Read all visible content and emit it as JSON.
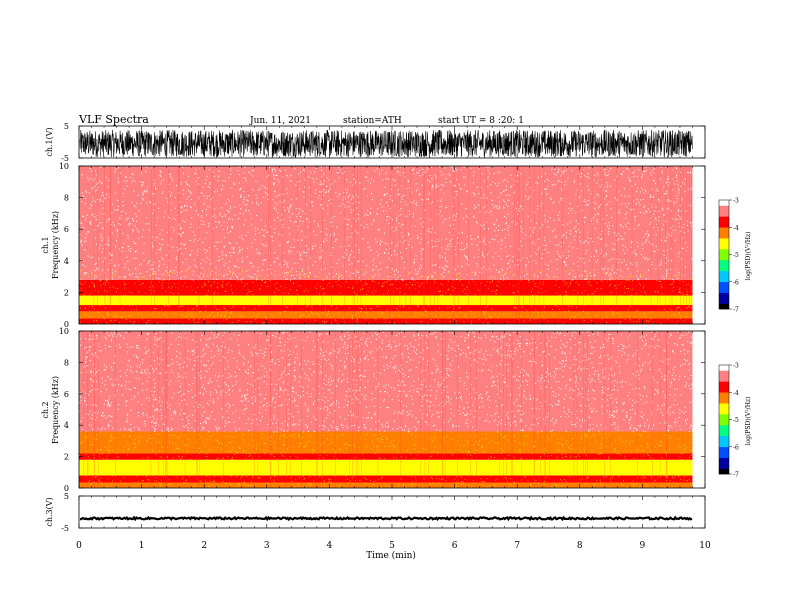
{
  "header": {
    "title": "VLF Spectra",
    "date": "Jun. 11, 2021",
    "station": "station=ATH",
    "start": "start UT = 8 :20: 1"
  },
  "colors": {
    "palette": [
      "#000000",
      "#0000a0",
      "#0050ff",
      "#00c8ff",
      "#00ff80",
      "#80ff00",
      "#ffff00",
      "#ff8000",
      "#ff0000",
      "#ff8080",
      "#ffffff"
    ],
    "waveform": "#000000",
    "axis": "#000000"
  },
  "chart_data": [
    {
      "type": "line",
      "name": "ch1-waveform",
      "ylabel": "ch.1(V)",
      "ylim": [
        -5,
        5
      ],
      "yticks": [
        "5",
        "-5"
      ],
      "description_amplitude": [
        -5,
        5
      ]
    },
    {
      "type": "heatmap",
      "name": "ch1-spectrogram",
      "ylabel_line1": "ch.1",
      "ylabel_line2": "Frequency (kHz)",
      "ylim": [
        0,
        10
      ],
      "yticks": [
        "0",
        "2",
        "4",
        "6",
        "8",
        "10"
      ],
      "bands": [
        {
          "f0": 0.0,
          "f1": 0.35,
          "level": -3.8
        },
        {
          "f0": 0.35,
          "f1": 0.8,
          "level": -4.2
        },
        {
          "f0": 0.8,
          "f1": 1.2,
          "level": -3.9
        },
        {
          "f0": 1.2,
          "f1": 1.8,
          "level": -4.4
        },
        {
          "f0": 1.8,
          "f1": 2.8,
          "level": -3.9
        },
        {
          "f0": 2.8,
          "f1": 10.0,
          "level": -3.3
        }
      ],
      "colorbar": {
        "label": "log(PSD)(V²/Hz)",
        "range": [
          -7,
          -3
        ],
        "ticks": [
          "-3",
          "-4",
          "-5",
          "-6",
          "-7"
        ]
      }
    },
    {
      "type": "heatmap",
      "name": "ch2-spectrogram",
      "ylabel_line1": "ch.2",
      "ylabel_line2": "Frequency (kHz)",
      "ylim": [
        0,
        10
      ],
      "yticks": [
        "0",
        "2",
        "4",
        "6",
        "8",
        "10"
      ],
      "bands": [
        {
          "f0": 0.0,
          "f1": 0.35,
          "level": -4.1
        },
        {
          "f0": 0.35,
          "f1": 0.8,
          "level": -3.9
        },
        {
          "f0": 0.8,
          "f1": 1.8,
          "level": -4.6
        },
        {
          "f0": 1.8,
          "f1": 2.2,
          "level": -3.9
        },
        {
          "f0": 2.2,
          "f1": 3.6,
          "level": -4.1
        },
        {
          "f0": 3.6,
          "f1": 10.0,
          "level": -3.4
        }
      ],
      "colorbar": {
        "label": "log(PSD)(V²/Hz)",
        "range": [
          -7,
          -3
        ],
        "ticks": [
          "-3",
          "-4",
          "-5",
          "-6",
          "-7"
        ]
      }
    },
    {
      "type": "line",
      "name": "ch3-waveform",
      "ylabel": "ch.3(V)",
      "ylim": [
        -5,
        5
      ],
      "yticks": [
        "5",
        "-5"
      ],
      "level": -2
    }
  ],
  "xaxis": {
    "label": "Time (min)",
    "range": [
      0,
      10
    ],
    "ticks": [
      "0",
      "1",
      "2",
      "3",
      "4",
      "5",
      "6",
      "7",
      "8",
      "9",
      "10"
    ],
    "data_end": 9.8
  }
}
